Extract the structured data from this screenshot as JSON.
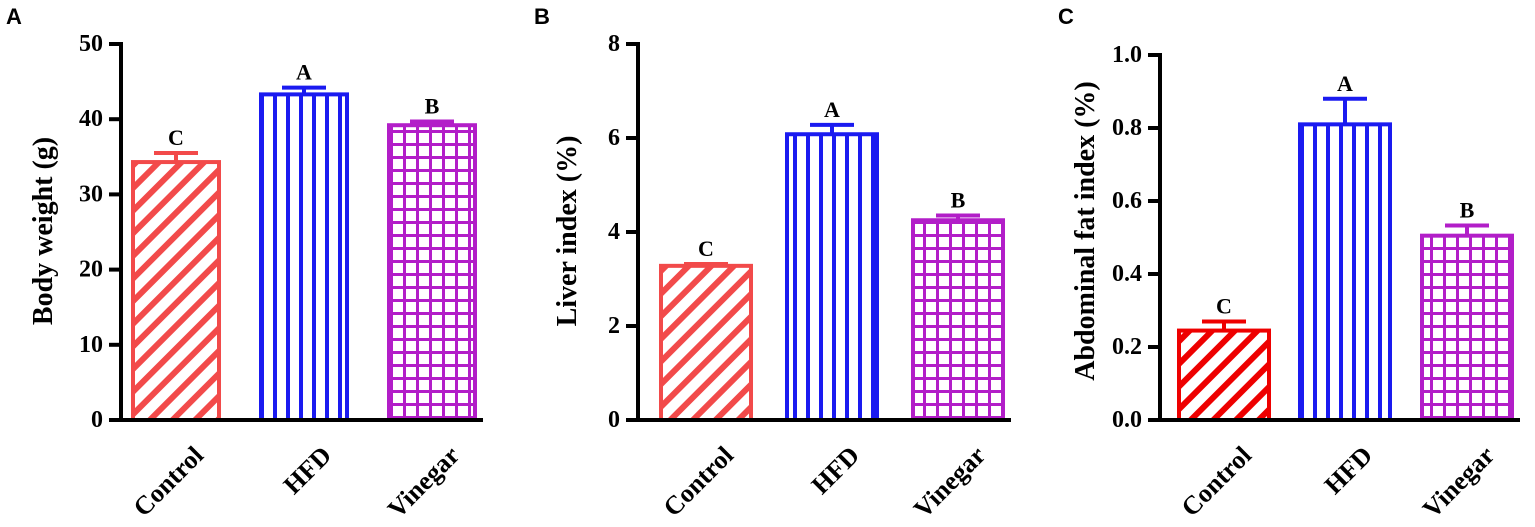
{
  "colors": {
    "control": "#f24a4a",
    "control_c": "#ee0000",
    "hfd": "#1a1af0",
    "vinegar": "#b21ec8",
    "axis": "#000000"
  },
  "chart_data": [
    {
      "panel": "A",
      "type": "bar",
      "categories": [
        "Control",
        "HFD",
        "Vinegar"
      ],
      "values": [
        34.3,
        43.3,
        39.2
      ],
      "errors": [
        1.2,
        0.9,
        0.5
      ],
      "significance": [
        "C",
        "A",
        "B"
      ],
      "patterns": [
        "diagonal",
        "vertical",
        "grid"
      ],
      "ylabel": "Body weight (g)",
      "ylim": [
        0,
        50
      ],
      "yticks": [
        "0",
        "10",
        "20",
        "30",
        "40",
        "50"
      ]
    },
    {
      "panel": "B",
      "type": "bar",
      "categories": [
        "Control",
        "HFD",
        "Vinegar"
      ],
      "values": [
        3.28,
        6.08,
        4.25
      ],
      "errors": [
        0.04,
        0.2,
        0.1
      ],
      "significance": [
        "C",
        "A",
        "B"
      ],
      "patterns": [
        "diagonal",
        "vertical",
        "grid"
      ],
      "ylabel": "Liver index (%)",
      "ylim": [
        0,
        8
      ],
      "yticks": [
        "0",
        "2",
        "4",
        "6",
        "8"
      ]
    },
    {
      "panel": "C",
      "type": "bar",
      "categories": [
        "Control",
        "HFD",
        "Vinegar"
      ],
      "values": [
        0.245,
        0.81,
        0.505
      ],
      "errors": [
        0.025,
        0.07,
        0.028
      ],
      "significance": [
        "C",
        "A",
        "B"
      ],
      "patterns": [
        "diagonal",
        "vertical",
        "grid"
      ],
      "ylabel": "Abdominal fat index (%)",
      "ylim": [
        0,
        1.0
      ],
      "yticks": [
        "0.0",
        "0.2",
        "0.4",
        "0.6",
        "0.8",
        "1.0"
      ]
    }
  ]
}
